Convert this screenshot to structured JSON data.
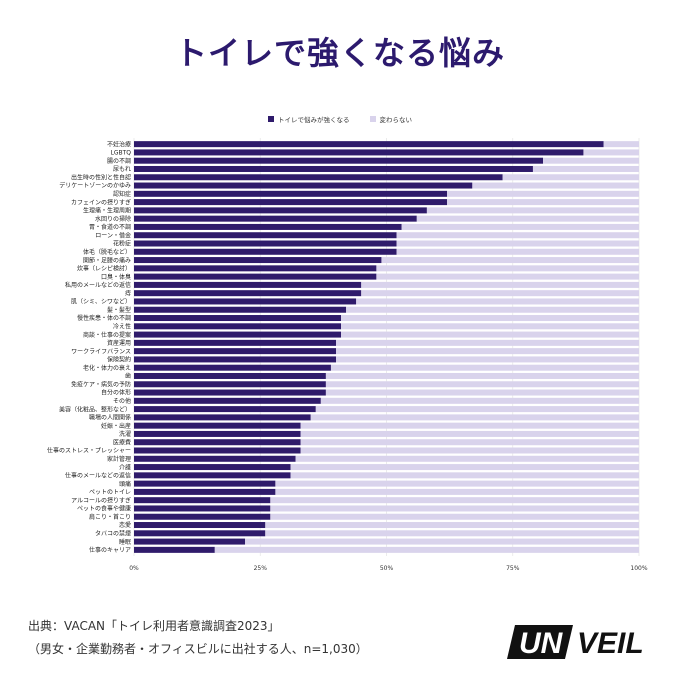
{
  "title": "トイレで強くなる悩み",
  "source": {
    "line1": "出典：VACAN「トイレ利用者意識調査2023」",
    "line2": "（男女・企業勤務者・オフィスビルに出社する人、n=1,030）"
  },
  "logo": {
    "text": "UNVEIL"
  },
  "colors": {
    "primary": "#2f1b6b",
    "secondary": "#d9d3ec",
    "title": "#2c1a6e"
  },
  "chart_data": {
    "type": "bar",
    "orientation": "horizontal",
    "stacked": true,
    "xlim": [
      0,
      100
    ],
    "xticks": [
      "0%",
      "25%",
      "50%",
      "75%",
      "100%"
    ],
    "grid": true,
    "legend_position": "top",
    "categories": [
      "不妊治療",
      "LGBTQ",
      "腸の不調",
      "尿もれ",
      "出生時の性別と性自認",
      "デリケートゾーンのかゆみ",
      "認知症",
      "カフェインの摂りすぎ",
      "生理痛・生理周期",
      "水回りの掃除",
      "胃・食道の不調",
      "ローン・借金",
      "花粉症",
      "体毛（脱毛など）",
      "関節・足腰の痛み",
      "炊事（レシピ検討）",
      "口臭・体臭",
      "私用のメールなどの返信",
      "痔",
      "肌（シミ、シワなど）",
      "髪・髪型",
      "慢性疾患・体の不調",
      "冷え性",
      "商談・仕事の提案",
      "資産運用",
      "ワークライフバランス",
      "保険契約",
      "老化・体力の衰え",
      "歯",
      "免疫ケア・病気の予防",
      "自分の体形",
      "その他",
      "美容（化粧品、整形など）",
      "職場の人間関係",
      "妊娠・出産",
      "洗濯",
      "医療費",
      "仕事のストレス・プレッシャー",
      "家計管理",
      "介護",
      "仕事のメールなどの返信",
      "頭痛",
      "ペットのトイレ",
      "アルコールの摂りすぎ",
      "ペットの食事や健康",
      "肩こり・首こり",
      "恋愛",
      "タバコの禁煙",
      "睡眠",
      "仕事のキャリア"
    ],
    "series": [
      {
        "name": "トイレで悩みが強くなる",
        "values": [
          93,
          89,
          81,
          79,
          73,
          67,
          62,
          62,
          58,
          56,
          53,
          52,
          52,
          52,
          49,
          48,
          48,
          45,
          45,
          44,
          42,
          41,
          41,
          41,
          40,
          40,
          40,
          39,
          38,
          38,
          38,
          37,
          36,
          35,
          33,
          33,
          33,
          33,
          32,
          31,
          31,
          28,
          28,
          27,
          27,
          27,
          26,
          26,
          22,
          16
        ]
      },
      {
        "name": "変わらない",
        "values": [
          7,
          11,
          19,
          21,
          27,
          33,
          38,
          38,
          42,
          44,
          47,
          48,
          48,
          48,
          51,
          52,
          52,
          55,
          55,
          56,
          58,
          59,
          59,
          59,
          60,
          60,
          60,
          61,
          62,
          62,
          62,
          63,
          64,
          65,
          67,
          67,
          67,
          67,
          68,
          69,
          69,
          72,
          72,
          73,
          73,
          73,
          74,
          74,
          78,
          84
        ]
      }
    ]
  }
}
